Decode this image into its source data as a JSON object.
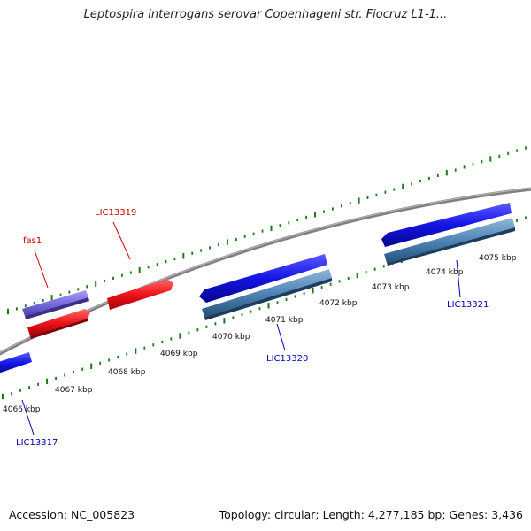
{
  "title": "Leptospira interrogans serovar Copenhageni str. Fiocruz L1-1...",
  "footer": {
    "accession": "Accession: NC_005823",
    "summary": "Topology: circular; Length: 4,277,185 bp; Genes: 3,436"
  },
  "colors": {
    "backbone": "#888888",
    "tick": "#1a7a1a",
    "forward_gene": "#e8141c",
    "forward_cds": "#7b6ee0",
    "reverse_gene": "#1414e6",
    "reverse_cds": "#4f86b8",
    "forward_label": "#cc0000",
    "reverse_label": "#0000b3"
  },
  "position_labels": [
    "4066 kbp",
    "4067 kbp",
    "4068 kbp",
    "4069 kbp",
    "4070 kbp",
    "4071 kbp",
    "4072 kbp",
    "4073 kbp",
    "4074 kbp",
    "4075 kbp"
  ],
  "gene_labels": {
    "fas1": "fas1",
    "lic13319": "LIC13319",
    "lic13320": "LIC13320",
    "lic13321": "LIC13321",
    "lic13317": "LIC13317"
  }
}
